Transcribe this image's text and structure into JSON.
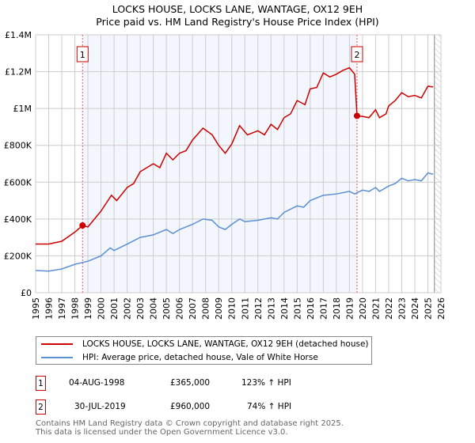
{
  "title": "LOCKS HOUSE, LOCKS LANE, WANTAGE, OX12 9EH",
  "subtitle": "Price paid vs. HM Land Registry's House Price Index (HPI)",
  "chart_data": {
    "type": "line",
    "title": "LOCKS HOUSE, LOCKS LANE, WANTAGE, OX12 9EH",
    "subtitle": "Price paid vs. HM Land Registry's House Price Index (HPI)",
    "xlim": [
      1995,
      2026
    ],
    "ylim": [
      0,
      1400000
    ],
    "x_ticks": [
      "1995",
      "1996",
      "1997",
      "1998",
      "1999",
      "2000",
      "2001",
      "2002",
      "2003",
      "2004",
      "2005",
      "2006",
      "2007",
      "2008",
      "2009",
      "2010",
      "2011",
      "2012",
      "2013",
      "2014",
      "2015",
      "2016",
      "2017",
      "2018",
      "2019",
      "2020",
      "2021",
      "2022",
      "2023",
      "2024",
      "2025",
      "2026"
    ],
    "y_ticks": [
      {
        "v": 0,
        "label": "£0"
      },
      {
        "v": 200000,
        "label": "£200K"
      },
      {
        "v": 400000,
        "label": "£400K"
      },
      {
        "v": 600000,
        "label": "£600K"
      },
      {
        "v": 800000,
        "label": "£800K"
      },
      {
        "v": 1000000,
        "label": "£1M"
      },
      {
        "v": 1200000,
        "label": "£1.2M"
      },
      {
        "v": 1400000,
        "label": "£1.4M"
      }
    ],
    "grid": true,
    "shaded_range": [
      1998.59,
      2019.58
    ],
    "hatched_from": 2025.5,
    "series": [
      {
        "name": "LOCKS HOUSE, LOCKS LANE, WANTAGE, OX12 9EH (detached house)",
        "color": "#cc0000",
        "x": [
          1995,
          1996,
          1997,
          1998,
          1998.59,
          1999,
          2000,
          2000.8,
          2001.2,
          2002,
          2002.5,
          2003,
          2004,
          2004.5,
          2005,
          2005.5,
          2006,
          2006.5,
          2007,
          2007.8,
          2008.5,
          2009,
          2009.5,
          2010,
          2010.6,
          2011.2,
          2012,
          2012.5,
          2013,
          2013.5,
          2014,
          2014.5,
          2015,
          2015.6,
          2016,
          2016.5,
          2017,
          2017.5,
          2018,
          2018.5,
          2019,
          2019.4,
          2019.58,
          2020,
          2020.5,
          2021,
          2021.3,
          2021.8,
          2022,
          2022.5,
          2023,
          2023.5,
          2024,
          2024.5,
          2025,
          2025.4
        ],
        "y": [
          264000,
          264000,
          279000,
          329000,
          365000,
          357000,
          443000,
          529000,
          500000,
          571000,
          593000,
          657000,
          700000,
          679000,
          757000,
          721000,
          757000,
          771000,
          829000,
          893000,
          857000,
          800000,
          757000,
          807000,
          907000,
          857000,
          879000,
          857000,
          914000,
          886000,
          950000,
          971000,
          1043000,
          1021000,
          1107000,
          1114000,
          1193000,
          1171000,
          1186000,
          1207000,
          1221000,
          1186000,
          960000,
          957000,
          950000,
          993000,
          950000,
          971000,
          1014000,
          1043000,
          1086000,
          1064000,
          1071000,
          1057000,
          1121000,
          1117000
        ]
      },
      {
        "name": "HPI: Average price, detached house, Vale of White Horse",
        "color": "#5b8fd4",
        "x": [
          1995,
          1996,
          1997,
          1998,
          1998.59,
          1999,
          2000,
          2000.7,
          2001,
          2002,
          2003,
          2004,
          2005,
          2005.5,
          2006,
          2007,
          2007.8,
          2008.5,
          2009,
          2009.5,
          2010,
          2010.6,
          2011,
          2012,
          2013,
          2013.5,
          2014,
          2015,
          2015.5,
          2016,
          2017,
          2018,
          2019,
          2019.4,
          2020,
          2020.5,
          2021,
          2021.3,
          2022,
          2022.5,
          2023,
          2023.5,
          2024,
          2024.5,
          2025,
          2025.4
        ],
        "y": [
          121000,
          117000,
          129000,
          154000,
          164000,
          171000,
          200000,
          243000,
          229000,
          264000,
          300000,
          314000,
          343000,
          321000,
          343000,
          371000,
          400000,
          393000,
          357000,
          343000,
          371000,
          400000,
          386000,
          393000,
          407000,
          400000,
          436000,
          471000,
          464000,
          500000,
          529000,
          536000,
          550000,
          536000,
          557000,
          550000,
          571000,
          550000,
          579000,
          593000,
          621000,
          607000,
          614000,
          607000,
          650000,
          643000
        ]
      }
    ],
    "sales": [
      {
        "label": "1",
        "x": 1998.59,
        "y": 365000,
        "date": "04-AUG-1998",
        "price": "£365,000",
        "hpi": "123% ↑ HPI"
      },
      {
        "label": "2",
        "x": 2019.58,
        "y": 960000,
        "date": "30-JUL-2019",
        "price": "£960,000",
        "hpi": "74% ↑ HPI"
      }
    ],
    "legend_position": "bottom"
  },
  "footer": [
    "Contains HM Land Registry data © Crown copyright and database right 2025.",
    "This data is licensed under the Open Government Licence v3.0."
  ]
}
